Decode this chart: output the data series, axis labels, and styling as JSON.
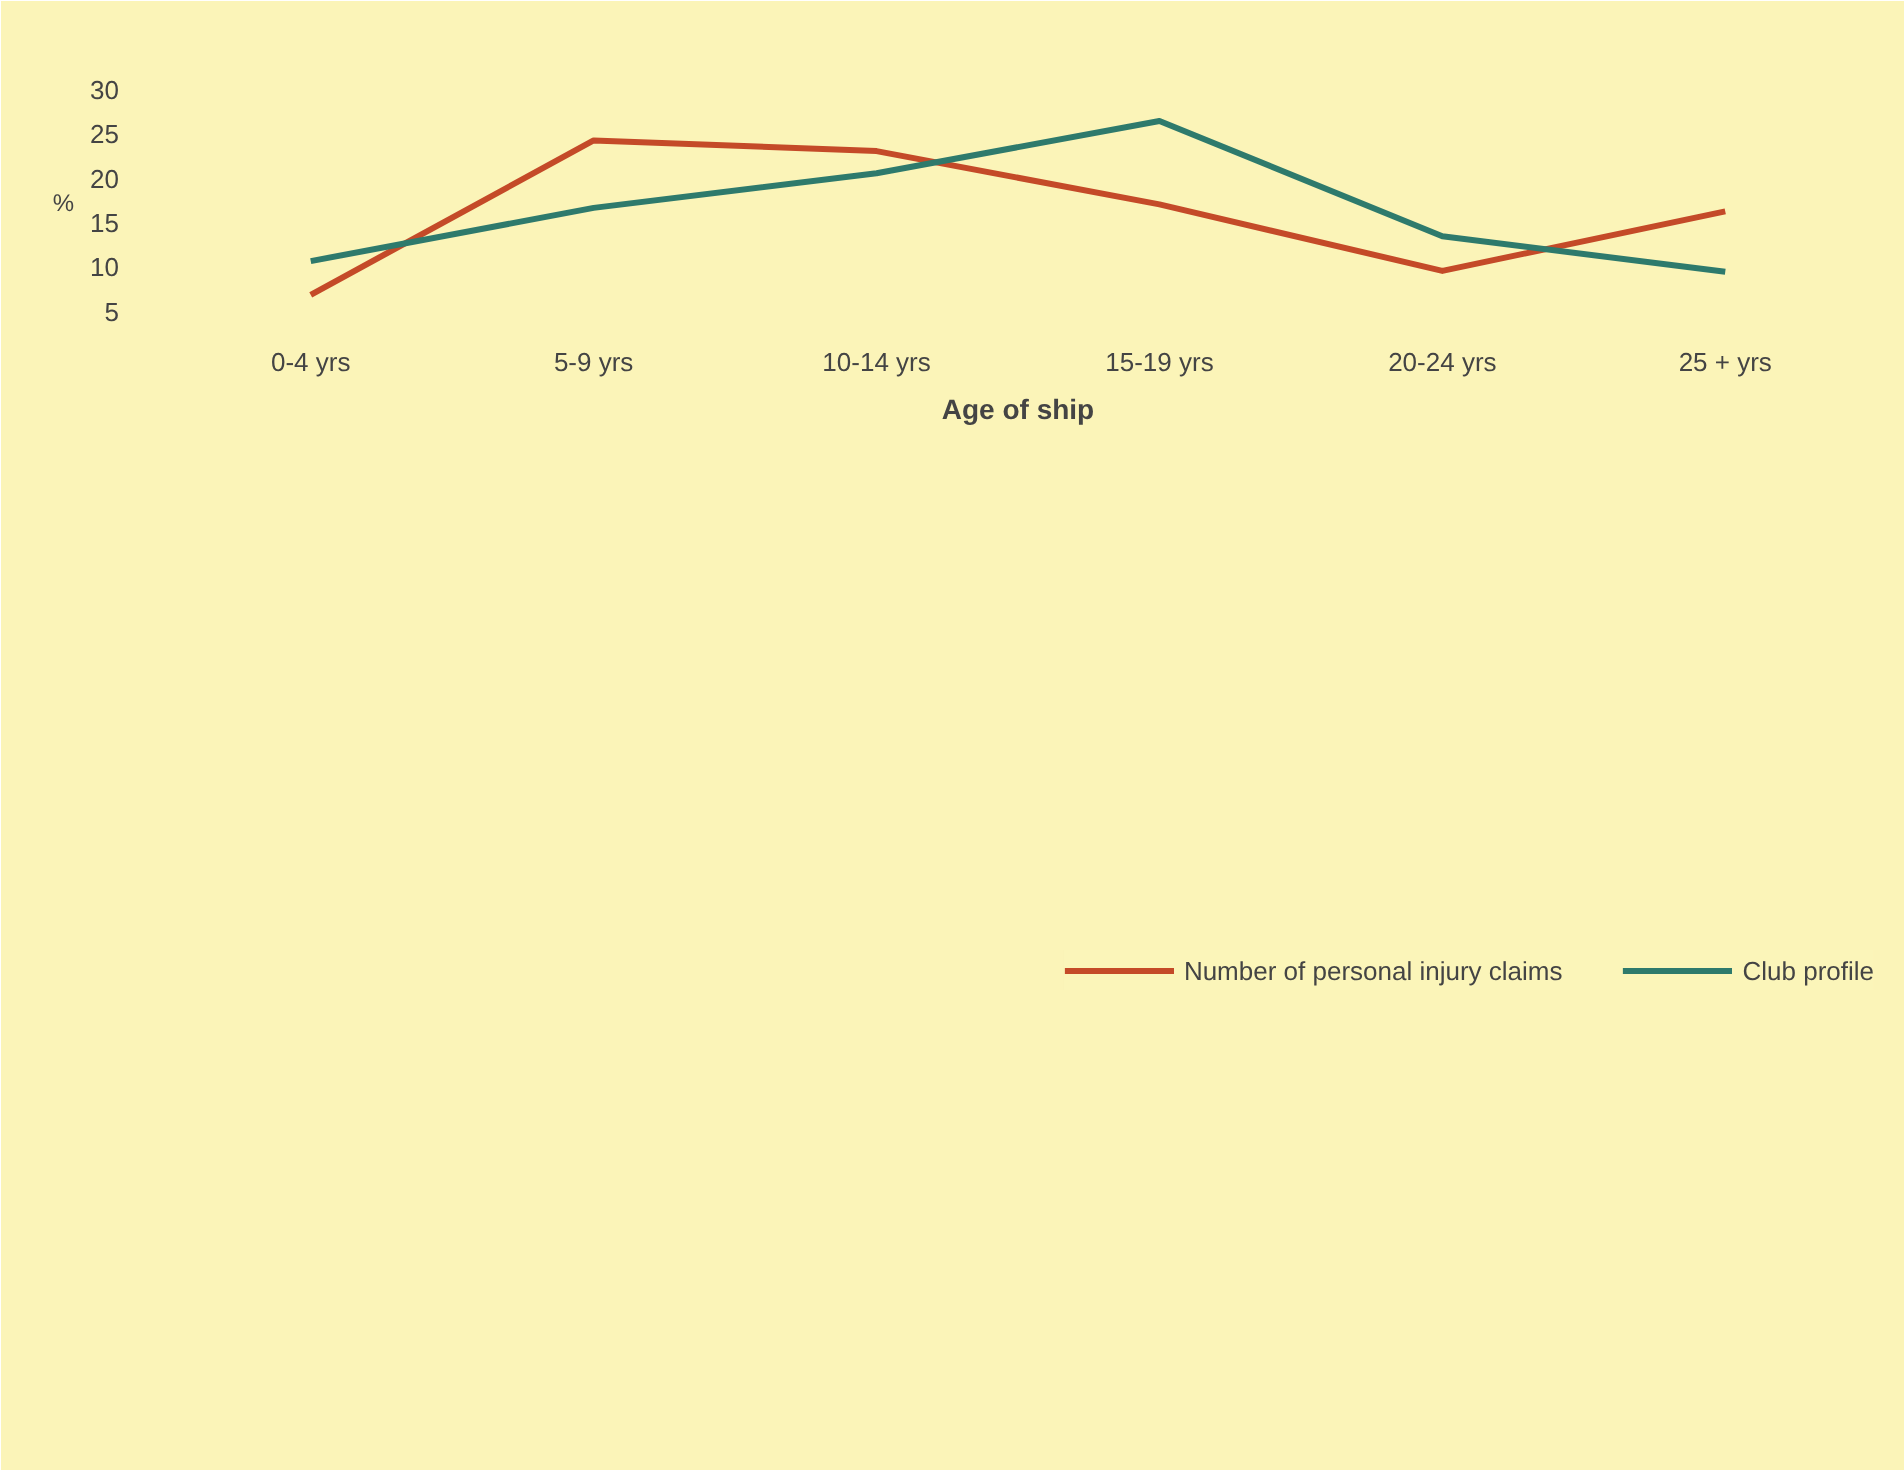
{
  "chart_data": {
    "type": "line",
    "xlabel": "Age of ship",
    "ylabel": "%",
    "categories": [
      "0-4 yrs",
      "5-9 yrs",
      "10-14 yrs",
      "15-19 yrs",
      "20-24 yrs",
      "25 + yrs"
    ],
    "series": [
      {
        "name": "Number of personal injury claims",
        "color": "#c44a28",
        "values": [
          6.9,
          24.3,
          23.1,
          17.1,
          9.6,
          16.3
        ]
      },
      {
        "name": "Club profile",
        "color": "#2e7a6c",
        "values": [
          10.7,
          16.7,
          20.6,
          26.5,
          13.5,
          9.5
        ]
      }
    ],
    "ylim": [
      3.5,
      31
    ],
    "yticks": [
      5,
      10,
      15,
      20,
      25,
      30
    ],
    "grid": false,
    "legend": "bottom",
    "marker": "none",
    "line_style": "solid"
  }
}
